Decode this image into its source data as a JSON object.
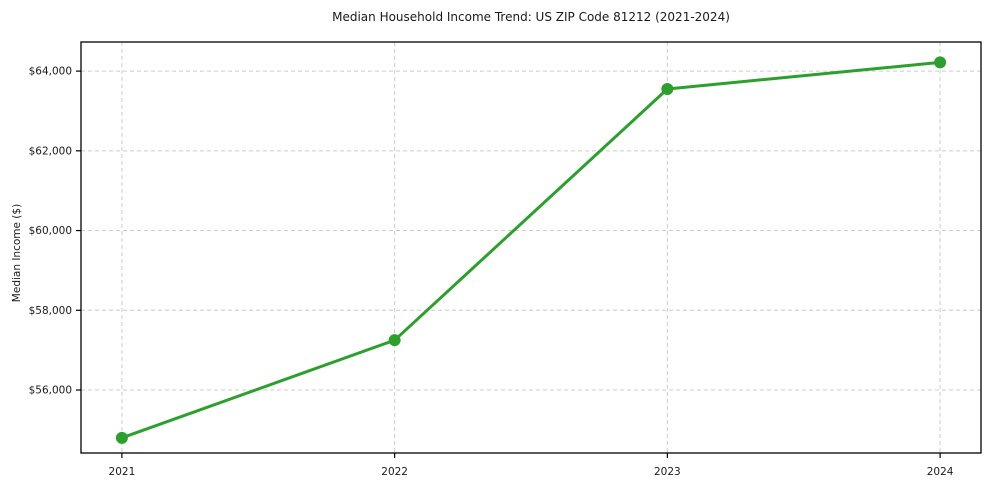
{
  "page": {
    "background": "#ffffff"
  },
  "chart_data": {
    "type": "line",
    "title": "Median Household Income Trend: US ZIP Code 81212 (2021-2024)",
    "xlabel": "",
    "ylabel": "Median Income ($)",
    "categories": [
      2021,
      2022,
      2023,
      2024
    ],
    "values": [
      54800,
      57250,
      63550,
      64220
    ],
    "xtick_labels": [
      "2021",
      "2022",
      "2023",
      "2024"
    ],
    "yticks": [
      {
        "value": 56000,
        "label": "$56,000"
      },
      {
        "value": 58000,
        "label": "$58,000"
      },
      {
        "value": 60000,
        "label": "$60,000"
      },
      {
        "value": 62000,
        "label": "$62,000"
      },
      {
        "value": 64000,
        "label": "$64,000"
      }
    ],
    "xlim": [
      2020.85,
      2024.15
    ],
    "ylim": [
      54420,
      64730
    ],
    "legend": "none",
    "grid": {
      "visible": true,
      "style": "dashed",
      "color": "#cccccc"
    },
    "line_color": "#2ca02c",
    "line_width": 3,
    "marker": {
      "shape": "circle",
      "radius": 6
    },
    "spine_color": "#000000",
    "tick_label_color": "#1a1a1a"
  }
}
